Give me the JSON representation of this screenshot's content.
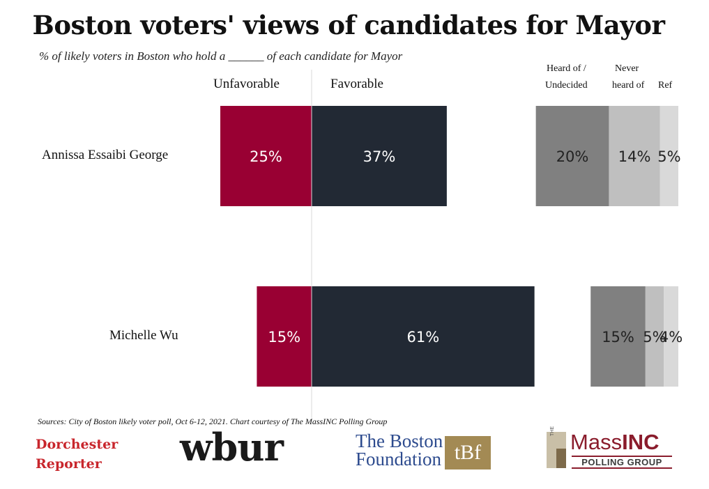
{
  "title": "Boston voters' views of candidates for Mayor",
  "subtitle": "% of likely voters in Boston who hold a ______ of each candidate for Mayor",
  "headers": {
    "unfavorable": "Unfavorable",
    "favorable": "Favorable",
    "heard_of_line1": "Heard of /",
    "heard_of_line2": "Undecided",
    "never_line1": "Never",
    "never_line2": "heard of",
    "refused": "Ref"
  },
  "chart_data": {
    "type": "bar",
    "orientation": "horizontal",
    "stacked": "diverging",
    "categories": [
      "Annissa Essaibi George",
      "Michelle Wu"
    ],
    "series": [
      {
        "name": "Unfavorable",
        "values": [
          25,
          15
        ],
        "color": "#990033"
      },
      {
        "name": "Favorable",
        "values": [
          37,
          61
        ],
        "color": "#222934"
      },
      {
        "name": "Heard of / Undecided",
        "values": [
          20,
          15
        ],
        "color": "#808080"
      },
      {
        "name": "Never heard of",
        "values": [
          14,
          5
        ],
        "color": "#bfbfbf"
      },
      {
        "name": "Ref",
        "values": [
          5,
          4
        ],
        "color": "#d9d9d9"
      }
    ],
    "labels": [
      [
        "25%",
        "37%",
        "20%",
        "14%",
        "5%"
      ],
      [
        "15%",
        "61%",
        "15%",
        "5%",
        "4%"
      ]
    ]
  },
  "source": "Sources: City of Boston likely voter poll, Oct 6-12, 2021. Chart courtesy of The MassINC Polling Group",
  "logos": {
    "dorchester_line1": "Dorchester",
    "dorchester_line2": "Reporter",
    "wbur": "wbur",
    "tbf_line1": "The Boston",
    "tbf_line2": "Foundation",
    "tbf_mark": "tBf",
    "massinc_the": "THE",
    "massinc_mass": "Mass",
    "massinc_inc": "INC",
    "massinc_sub": "POLLING GROUP"
  }
}
